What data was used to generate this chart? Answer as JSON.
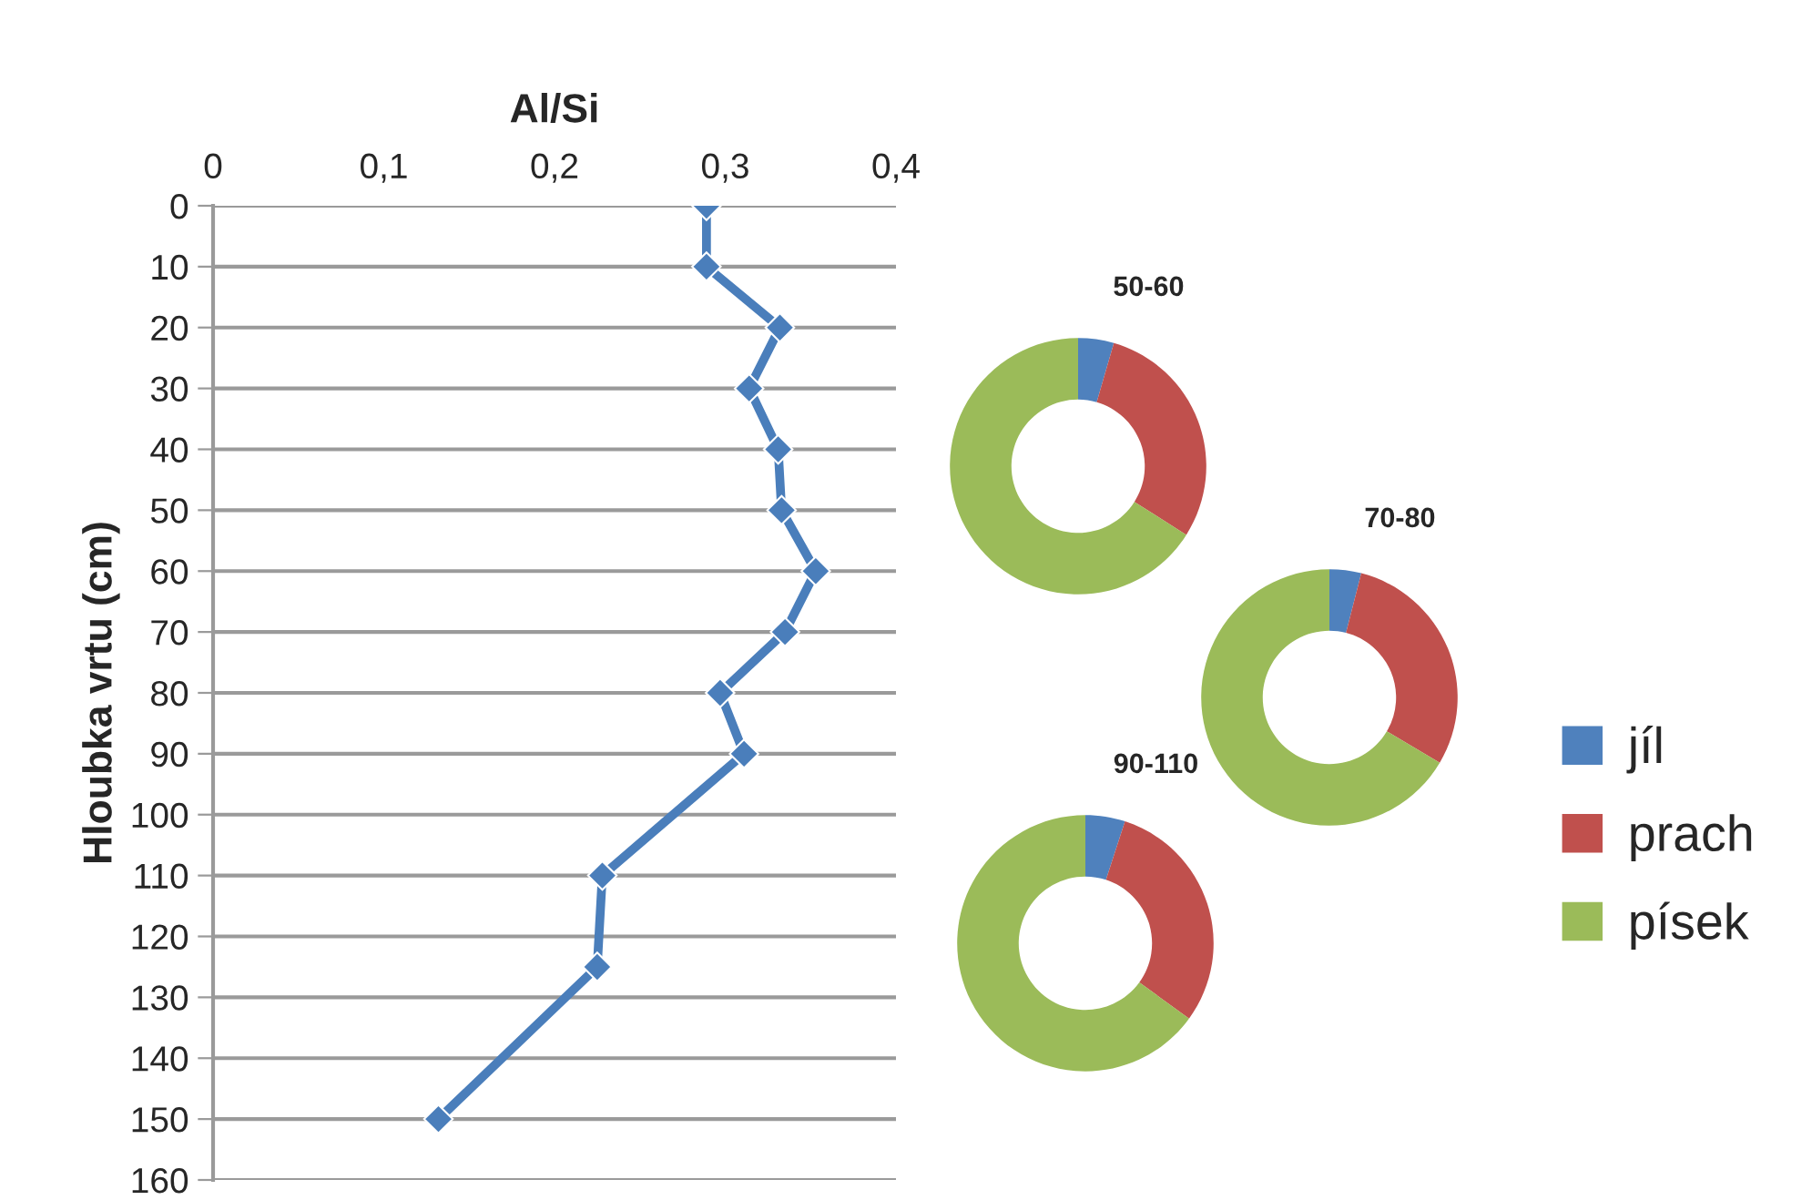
{
  "chart_data": [
    {
      "type": "line",
      "xlabel": "Al/Si",
      "ylabel": "Hloubka vrtu (cm)",
      "series": [
        {
          "color": "#4a7ebb",
          "x": [
            0.289,
            0.289,
            0.332,
            0.314,
            0.331,
            0.333,
            0.353,
            0.335,
            0.297,
            0.311,
            0.228,
            0.225,
            0.132
          ],
          "values": [
            0,
            10,
            20,
            30,
            40,
            50,
            60,
            70,
            80,
            90,
            110,
            125,
            150
          ]
        }
      ],
      "xlim": [
        0,
        0.4
      ],
      "xticks": [
        0,
        {
          "value": 0.1,
          "label": "0,1"
        },
        {
          "value": 0.2,
          "label": "0,2"
        },
        {
          "value": 0.3,
          "label": "0,3"
        },
        {
          "value": 0.4,
          "label": "0,4"
        }
      ],
      "ylim": [
        160,
        0
      ],
      "yticks": [
        0,
        10,
        20,
        30,
        40,
        50,
        60,
        70,
        80,
        90,
        100,
        110,
        120,
        130,
        140,
        150,
        160
      ],
      "grid": "y",
      "marker": "diamond",
      "line_style": "solid"
    },
    {
      "type": "donut",
      "title": "50-60",
      "categories": [
        "jíl",
        "prach",
        "písek"
      ],
      "values": [
        4.5,
        29.5,
        66
      ],
      "colors": [
        "#4f81bd",
        "#c0504d",
        "#9bbb59"
      ],
      "legend": "right"
    },
    {
      "type": "donut",
      "title": "70-80",
      "categories": [
        null,
        null,
        null
      ],
      "values": [
        4,
        29.5,
        66.5
      ],
      "colors": [
        "#4f81bd",
        "#c0504d",
        "#9bbb59"
      ]
    },
    {
      "type": "donut",
      "title": "90-110",
      "categories": [
        null,
        null,
        null
      ],
      "values": [
        5,
        30,
        65
      ],
      "colors": [
        "#4f81bd",
        "#c0504d",
        "#9bbb59"
      ]
    }
  ]
}
